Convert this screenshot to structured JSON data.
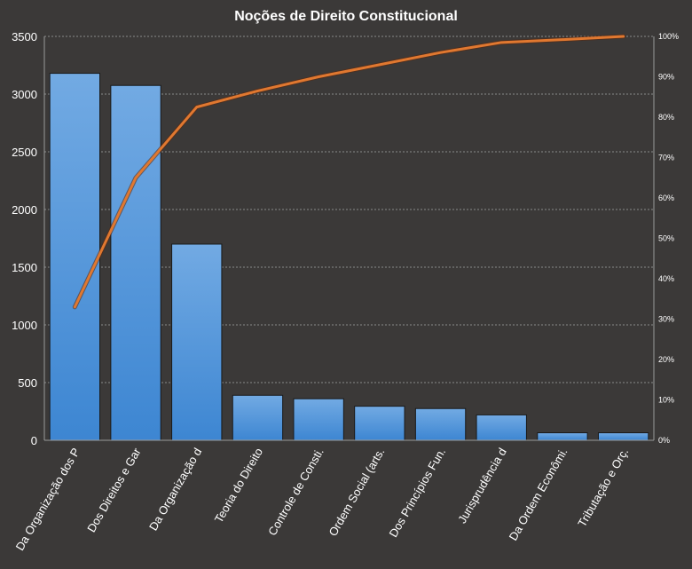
{
  "chart_data": {
    "type": "bar",
    "title": "Noções de Direito  Constitucional",
    "categories": [
      "Da Organização dos P",
      "Dos Direitos e Gar",
      "Da Organização d",
      "Teoria do Direito",
      "Controle de Consti.",
      "Ordem Social (arts.",
      "Dos Princípios Fun.",
      "Jurisprudência d",
      "Da Ordem Econômi.",
      "Tributação e Orç."
    ],
    "series": [
      {
        "type": "bar",
        "values": [
          3180,
          3075,
          1700,
          390,
          360,
          295,
          275,
          220,
          65,
          65
        ]
      },
      {
        "type": "line",
        "axis": "secondary",
        "values": [
          33,
          65,
          82.5,
          86.5,
          90,
          93,
          96,
          98.5,
          99.2,
          100
        ]
      }
    ],
    "ylim": [
      0,
      3500
    ],
    "yticks": [
      "0",
      "500",
      "1000",
      "1500",
      "2000",
      "2500",
      "3000",
      "3500"
    ],
    "y2lim": [
      0,
      100
    ],
    "y2ticks": [
      "0%",
      "10%",
      "20%",
      "30%",
      "40%",
      "50%",
      "60%",
      "70%",
      "80%",
      "90%",
      "100%"
    ],
    "grid": true,
    "colors": {
      "background": "#3b3938",
      "bar": "#4f94d9",
      "bar_light": "#72aae3",
      "line": "#e07830",
      "grid": "#8a8a8a",
      "text": "#ffffff"
    }
  }
}
